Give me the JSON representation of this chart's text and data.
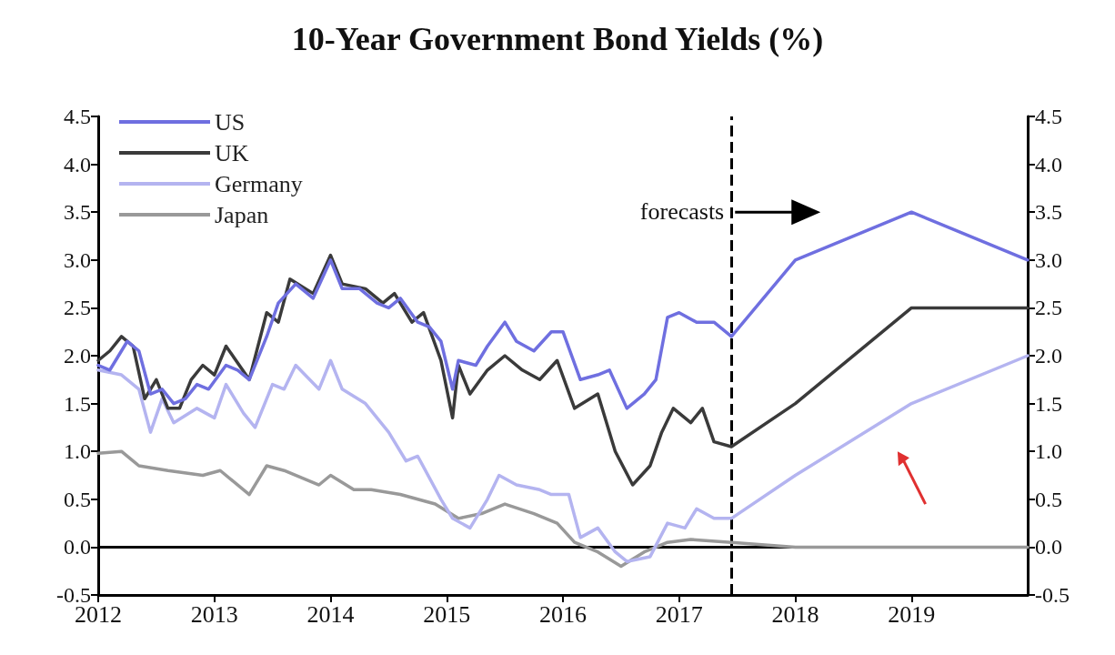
{
  "chart_data": {
    "type": "line",
    "title": "10-Year Government Bond Yields (%)",
    "series": [
      {
        "name": "US",
        "color": "#6f6fe0",
        "x": [
          2012.0,
          2012.1,
          2012.25,
          2012.35,
          2012.45,
          2012.55,
          2012.65,
          2012.75,
          2012.85,
          2012.95,
          2013.1,
          2013.2,
          2013.3,
          2013.45,
          2013.55,
          2013.7,
          2013.85,
          2014.0,
          2014.1,
          2014.25,
          2014.4,
          2014.5,
          2014.6,
          2014.75,
          2014.85,
          2014.95,
          2015.05,
          2015.1,
          2015.25,
          2015.35,
          2015.5,
          2015.6,
          2015.75,
          2015.9,
          2016.0,
          2016.15,
          2016.3,
          2016.4,
          2016.55,
          2016.7,
          2016.8,
          2016.9,
          2017.0,
          2017.15,
          2017.3,
          2017.45,
          2018.0,
          2019.0,
          2020.0
        ],
        "values": [
          1.9,
          1.85,
          2.15,
          2.05,
          1.6,
          1.65,
          1.5,
          1.55,
          1.7,
          1.65,
          1.9,
          1.85,
          1.75,
          2.2,
          2.55,
          2.75,
          2.6,
          3.0,
          2.7,
          2.7,
          2.55,
          2.5,
          2.6,
          2.35,
          2.3,
          2.15,
          1.65,
          1.95,
          1.9,
          2.1,
          2.35,
          2.15,
          2.05,
          2.25,
          2.25,
          1.75,
          1.8,
          1.85,
          1.45,
          1.6,
          1.75,
          2.4,
          2.45,
          2.35,
          2.35,
          2.2,
          3.0,
          3.5,
          3.0
        ]
      },
      {
        "name": "UK",
        "color": "#3a3a3a",
        "x": [
          2012.0,
          2012.1,
          2012.2,
          2012.3,
          2012.4,
          2012.5,
          2012.6,
          2012.7,
          2012.8,
          2012.9,
          2013.0,
          2013.1,
          2013.3,
          2013.45,
          2013.55,
          2013.65,
          2013.85,
          2014.0,
          2014.1,
          2014.3,
          2014.45,
          2014.55,
          2014.7,
          2014.8,
          2014.95,
          2015.05,
          2015.1,
          2015.2,
          2015.35,
          2015.5,
          2015.65,
          2015.8,
          2015.95,
          2016.1,
          2016.3,
          2016.45,
          2016.6,
          2016.75,
          2016.85,
          2016.95,
          2017.1,
          2017.2,
          2017.3,
          2017.45,
          2018.0,
          2019.0,
          2020.0
        ],
        "values": [
          1.95,
          2.05,
          2.2,
          2.1,
          1.55,
          1.75,
          1.45,
          1.45,
          1.75,
          1.9,
          1.8,
          2.1,
          1.75,
          2.45,
          2.35,
          2.8,
          2.65,
          3.05,
          2.75,
          2.7,
          2.55,
          2.65,
          2.35,
          2.45,
          1.95,
          1.35,
          1.9,
          1.6,
          1.85,
          2.0,
          1.85,
          1.75,
          1.95,
          1.45,
          1.6,
          1.0,
          0.65,
          0.85,
          1.2,
          1.45,
          1.3,
          1.45,
          1.1,
          1.05,
          1.5,
          2.5,
          2.5
        ]
      },
      {
        "name": "Germany",
        "color": "#b4b4f0",
        "x": [
          2012.0,
          2012.2,
          2012.35,
          2012.45,
          2012.55,
          2012.65,
          2012.85,
          2013.0,
          2013.1,
          2013.25,
          2013.35,
          2013.5,
          2013.6,
          2013.7,
          2013.9,
          2014.0,
          2014.1,
          2014.3,
          2014.5,
          2014.65,
          2014.75,
          2014.95,
          2015.05,
          2015.2,
          2015.35,
          2015.45,
          2015.6,
          2015.8,
          2015.9,
          2016.05,
          2016.15,
          2016.3,
          2016.45,
          2016.55,
          2016.75,
          2016.9,
          2017.05,
          2017.15,
          2017.3,
          2017.45,
          2018.0,
          2019.0,
          2020.0
        ],
        "values": [
          1.85,
          1.8,
          1.65,
          1.2,
          1.55,
          1.3,
          1.45,
          1.35,
          1.7,
          1.4,
          1.25,
          1.7,
          1.65,
          1.9,
          1.65,
          1.95,
          1.65,
          1.5,
          1.2,
          0.9,
          0.95,
          0.5,
          0.3,
          0.2,
          0.5,
          0.75,
          0.65,
          0.6,
          0.55,
          0.55,
          0.1,
          0.2,
          -0.05,
          -0.15,
          -0.1,
          0.25,
          0.2,
          0.4,
          0.3,
          0.3,
          0.75,
          1.5,
          2.0
        ]
      },
      {
        "name": "Japan",
        "color": "#999999",
        "x": [
          2012.0,
          2012.2,
          2012.35,
          2012.6,
          2012.9,
          2013.05,
          2013.3,
          2013.45,
          2013.6,
          2013.9,
          2014.0,
          2014.2,
          2014.35,
          2014.6,
          2014.9,
          2015.1,
          2015.3,
          2015.5,
          2015.75,
          2015.95,
          2016.1,
          2016.3,
          2016.5,
          2016.7,
          2016.9,
          2017.1,
          2017.45,
          2018.0,
          2019.0,
          2020.0
        ],
        "values": [
          0.98,
          1.0,
          0.85,
          0.8,
          0.75,
          0.8,
          0.55,
          0.85,
          0.8,
          0.65,
          0.75,
          0.6,
          0.6,
          0.55,
          0.45,
          0.3,
          0.35,
          0.45,
          0.35,
          0.25,
          0.05,
          -0.05,
          -0.2,
          -0.05,
          0.05,
          0.08,
          0.05,
          0.0,
          0.0,
          0.0
        ]
      }
    ],
    "xlim": [
      2012,
      2020
    ],
    "xticks": [
      2012,
      2013,
      2014,
      2015,
      2016,
      2017,
      2018,
      2019
    ],
    "ylim": [
      -0.5,
      4.5
    ],
    "yticks": [
      -0.5,
      {
        "value": 0,
        "label": "0.0"
      },
      0.5,
      {
        "value": 1,
        "label": "1.0"
      },
      1.5,
      {
        "value": 2,
        "label": "2.0"
      },
      2.5,
      {
        "value": 3,
        "label": "3.0"
      },
      3.5,
      {
        "value": 4,
        "label": "4.0"
      },
      4.5
    ],
    "y2lim": [
      -0.5,
      4.5
    ],
    "y2ticks": [
      -0.5,
      {
        "value": 0,
        "label": "0.0"
      },
      0.5,
      {
        "value": 1,
        "label": "1.0"
      },
      1.5,
      {
        "value": 2,
        "label": "2.0"
      },
      2.5,
      {
        "value": 3,
        "label": "3.0"
      },
      3.5,
      {
        "value": 4,
        "label": "4.0"
      },
      4.5
    ],
    "ref_lines": [
      {
        "axis": "y",
        "value": 0,
        "color": "#000000",
        "line_style": "solid"
      },
      {
        "axis": "x",
        "value": 2017.45,
        "label": "forecasts",
        "color": "#000000",
        "line_style": "dashed"
      }
    ],
    "legend": "top left",
    "grid": false,
    "marker": "none",
    "line_style": "solid"
  }
}
